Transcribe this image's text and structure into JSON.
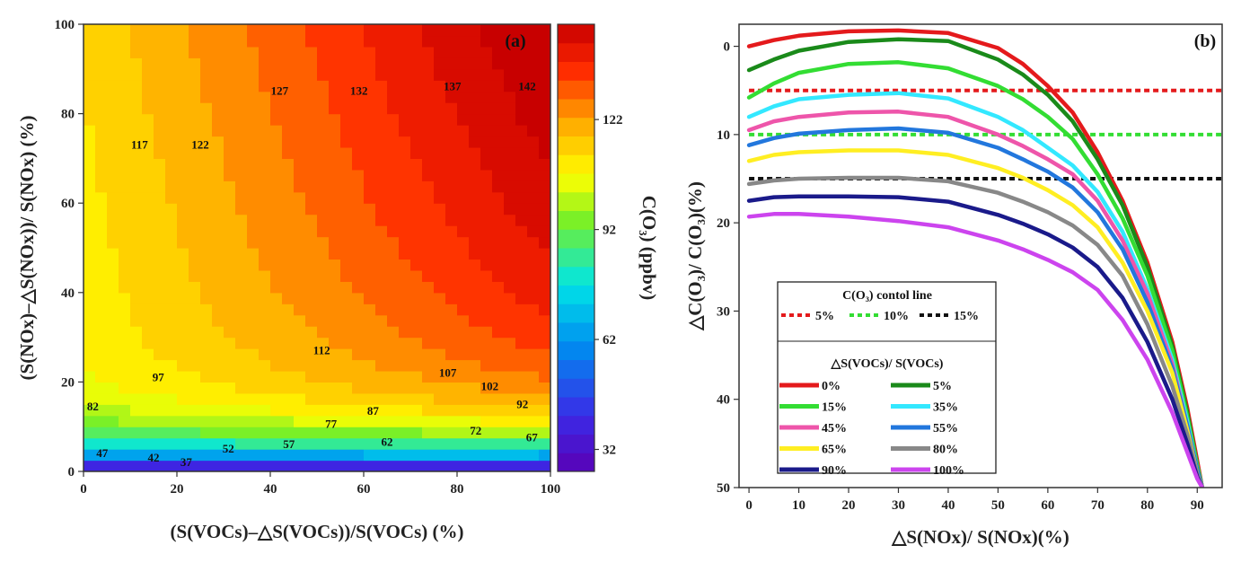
{
  "chart_data": [
    {
      "type": "heatmap",
      "panel_label": "(a)",
      "xlabel": "(S(VOCs)–△S(VOCs))/S(VOCs) (%)",
      "ylabel": "(S(NOx)–△S(NOx))/ S(NOx) (%)",
      "xlim": [
        0,
        100
      ],
      "ylim": [
        0,
        100
      ],
      "xticks": [
        "0",
        "20",
        "40",
        "60",
        "80",
        "100"
      ],
      "yticks": [
        "0",
        "20",
        "40",
        "60",
        "80",
        "100"
      ],
      "colorbar": {
        "label": "C(O₃) (ppbv)",
        "ticks": [
          "32",
          "62",
          "92",
          "122"
        ],
        "range": [
          26,
          148
        ]
      },
      "contour_labels": [
        {
          "text": "117",
          "x": 12,
          "y": 73
        },
        {
          "text": "122",
          "x": 25,
          "y": 73
        },
        {
          "text": "127",
          "x": 42,
          "y": 85
        },
        {
          "text": "132",
          "x": 59,
          "y": 85
        },
        {
          "text": "137",
          "x": 79,
          "y": 86
        },
        {
          "text": "142",
          "x": 95,
          "y": 86
        },
        {
          "text": "112",
          "x": 51,
          "y": 27
        },
        {
          "text": "107",
          "x": 78,
          "y": 22
        },
        {
          "text": "102",
          "x": 87,
          "y": 19
        },
        {
          "text": "97",
          "x": 16,
          "y": 21
        },
        {
          "text": "92",
          "x": 94,
          "y": 15
        },
        {
          "text": "87",
          "x": 62,
          "y": 13.5
        },
        {
          "text": "82",
          "x": 2,
          "y": 14.5
        },
        {
          "text": "77",
          "x": 53,
          "y": 10.5
        },
        {
          "text": "72",
          "x": 84,
          "y": 9
        },
        {
          "text": "67",
          "x": 96,
          "y": 7.5
        },
        {
          "text": "62",
          "x": 65,
          "y": 6.5
        },
        {
          "text": "57",
          "x": 44,
          "y": 6
        },
        {
          "text": "52",
          "x": 31,
          "y": 5
        },
        {
          "text": "47",
          "x": 4,
          "y": 4
        },
        {
          "text": "42",
          "x": 15,
          "y": 3
        },
        {
          "text": "37",
          "x": 22,
          "y": 2
        }
      ]
    },
    {
      "type": "line",
      "panel_label": "(b)",
      "xlabel": "△S(NOx)/ S(NOx)(%)",
      "ylabel": "△C(O₃)/ C(O₃)(%)",
      "xlim": [
        -2,
        95
      ],
      "ylim": [
        50,
        -2.5
      ],
      "y_inverted": true,
      "xticks": [
        "0",
        "10",
        "20",
        "30",
        "40",
        "50",
        "60",
        "70",
        "80",
        "90"
      ],
      "yticks": [
        "0",
        "10",
        "20",
        "30",
        "40",
        "50"
      ],
      "x": [
        0,
        5,
        10,
        20,
        30,
        40,
        50,
        55,
        60,
        65,
        70,
        75,
        80,
        85,
        88,
        90,
        91
      ],
      "series": [
        {
          "name": "0%",
          "color": "#e41a1c",
          "values": [
            0,
            -0.7,
            -1.2,
            -1.7,
            -1.8,
            -1.5,
            0.2,
            2.0,
            4.5,
            7.5,
            12,
            17.5,
            24.5,
            33.5,
            41,
            47,
            50
          ]
        },
        {
          "name": "5%",
          "color": "#1a8a1a",
          "values": [
            2.7,
            1.5,
            0.5,
            -0.5,
            -0.8,
            -0.6,
            1.5,
            3.2,
            5.5,
            8.5,
            12.8,
            18,
            25,
            34,
            41.5,
            47.5,
            50
          ]
        },
        {
          "name": "15%",
          "color": "#33dd33",
          "values": [
            5.8,
            4.2,
            3.0,
            2.0,
            1.8,
            2.5,
            4.5,
            6.0,
            8.0,
            10.5,
            14.5,
            19.5,
            26,
            34.5,
            42,
            47.5,
            50
          ]
        },
        {
          "name": "35%",
          "color": "#33e8ff",
          "values": [
            8.0,
            6.8,
            6.0,
            5.5,
            5.3,
            5.9,
            8.0,
            9.5,
            11.5,
            13.5,
            16.5,
            21,
            27.5,
            35.5,
            42.5,
            48,
            50
          ]
        },
        {
          "name": "45%",
          "color": "#ee55aa",
          "values": [
            9.5,
            8.5,
            8.0,
            7.5,
            7.4,
            8.0,
            10.0,
            11.3,
            12.8,
            14.5,
            17.5,
            22,
            28,
            36,
            43,
            48,
            50
          ]
        },
        {
          "name": "55%",
          "color": "#2277dd",
          "values": [
            11.2,
            10.4,
            9.9,
            9.5,
            9.3,
            9.8,
            11.5,
            12.8,
            14.2,
            16.0,
            18.8,
            23,
            29,
            36.5,
            43,
            48,
            50
          ]
        },
        {
          "name": "65%",
          "color": "#ffee22",
          "values": [
            13.0,
            12.3,
            12.0,
            11.8,
            11.8,
            12.3,
            13.8,
            14.9,
            16.3,
            18.0,
            20.5,
            24.5,
            30,
            37,
            43.5,
            48.5,
            50
          ]
        },
        {
          "name": "80%",
          "color": "#888888",
          "values": [
            15.6,
            15.2,
            15.0,
            14.9,
            14.9,
            15.3,
            16.6,
            17.6,
            18.8,
            20.3,
            22.5,
            26,
            31.5,
            38.5,
            44,
            48.5,
            50
          ]
        },
        {
          "name": "90%",
          "color": "#1a1a8a",
          "values": [
            17.5,
            17.1,
            17.0,
            17.0,
            17.1,
            17.6,
            19.1,
            20.1,
            21.3,
            22.8,
            25,
            28.5,
            33.5,
            40,
            45,
            48.8,
            50
          ]
        },
        {
          "name": "100%",
          "color": "#cc44ee",
          "values": [
            19.3,
            19.0,
            19.0,
            19.3,
            19.8,
            20.5,
            22.0,
            23.0,
            24.2,
            25.6,
            27.6,
            31,
            35.5,
            41.5,
            46,
            49,
            50
          ]
        }
      ],
      "control_lines": {
        "title": "C(O₃) contol line",
        "items": [
          {
            "label": "5%",
            "value": 5,
            "color": "#e41a1c"
          },
          {
            "label": "10%",
            "value": 10,
            "color": "#33dd33"
          },
          {
            "label": "15%",
            "value": 15,
            "color": "#111111"
          }
        ]
      },
      "legend_title": "△S(VOCs)/ S(VOCs)",
      "legend_position": "bottom-left"
    }
  ]
}
